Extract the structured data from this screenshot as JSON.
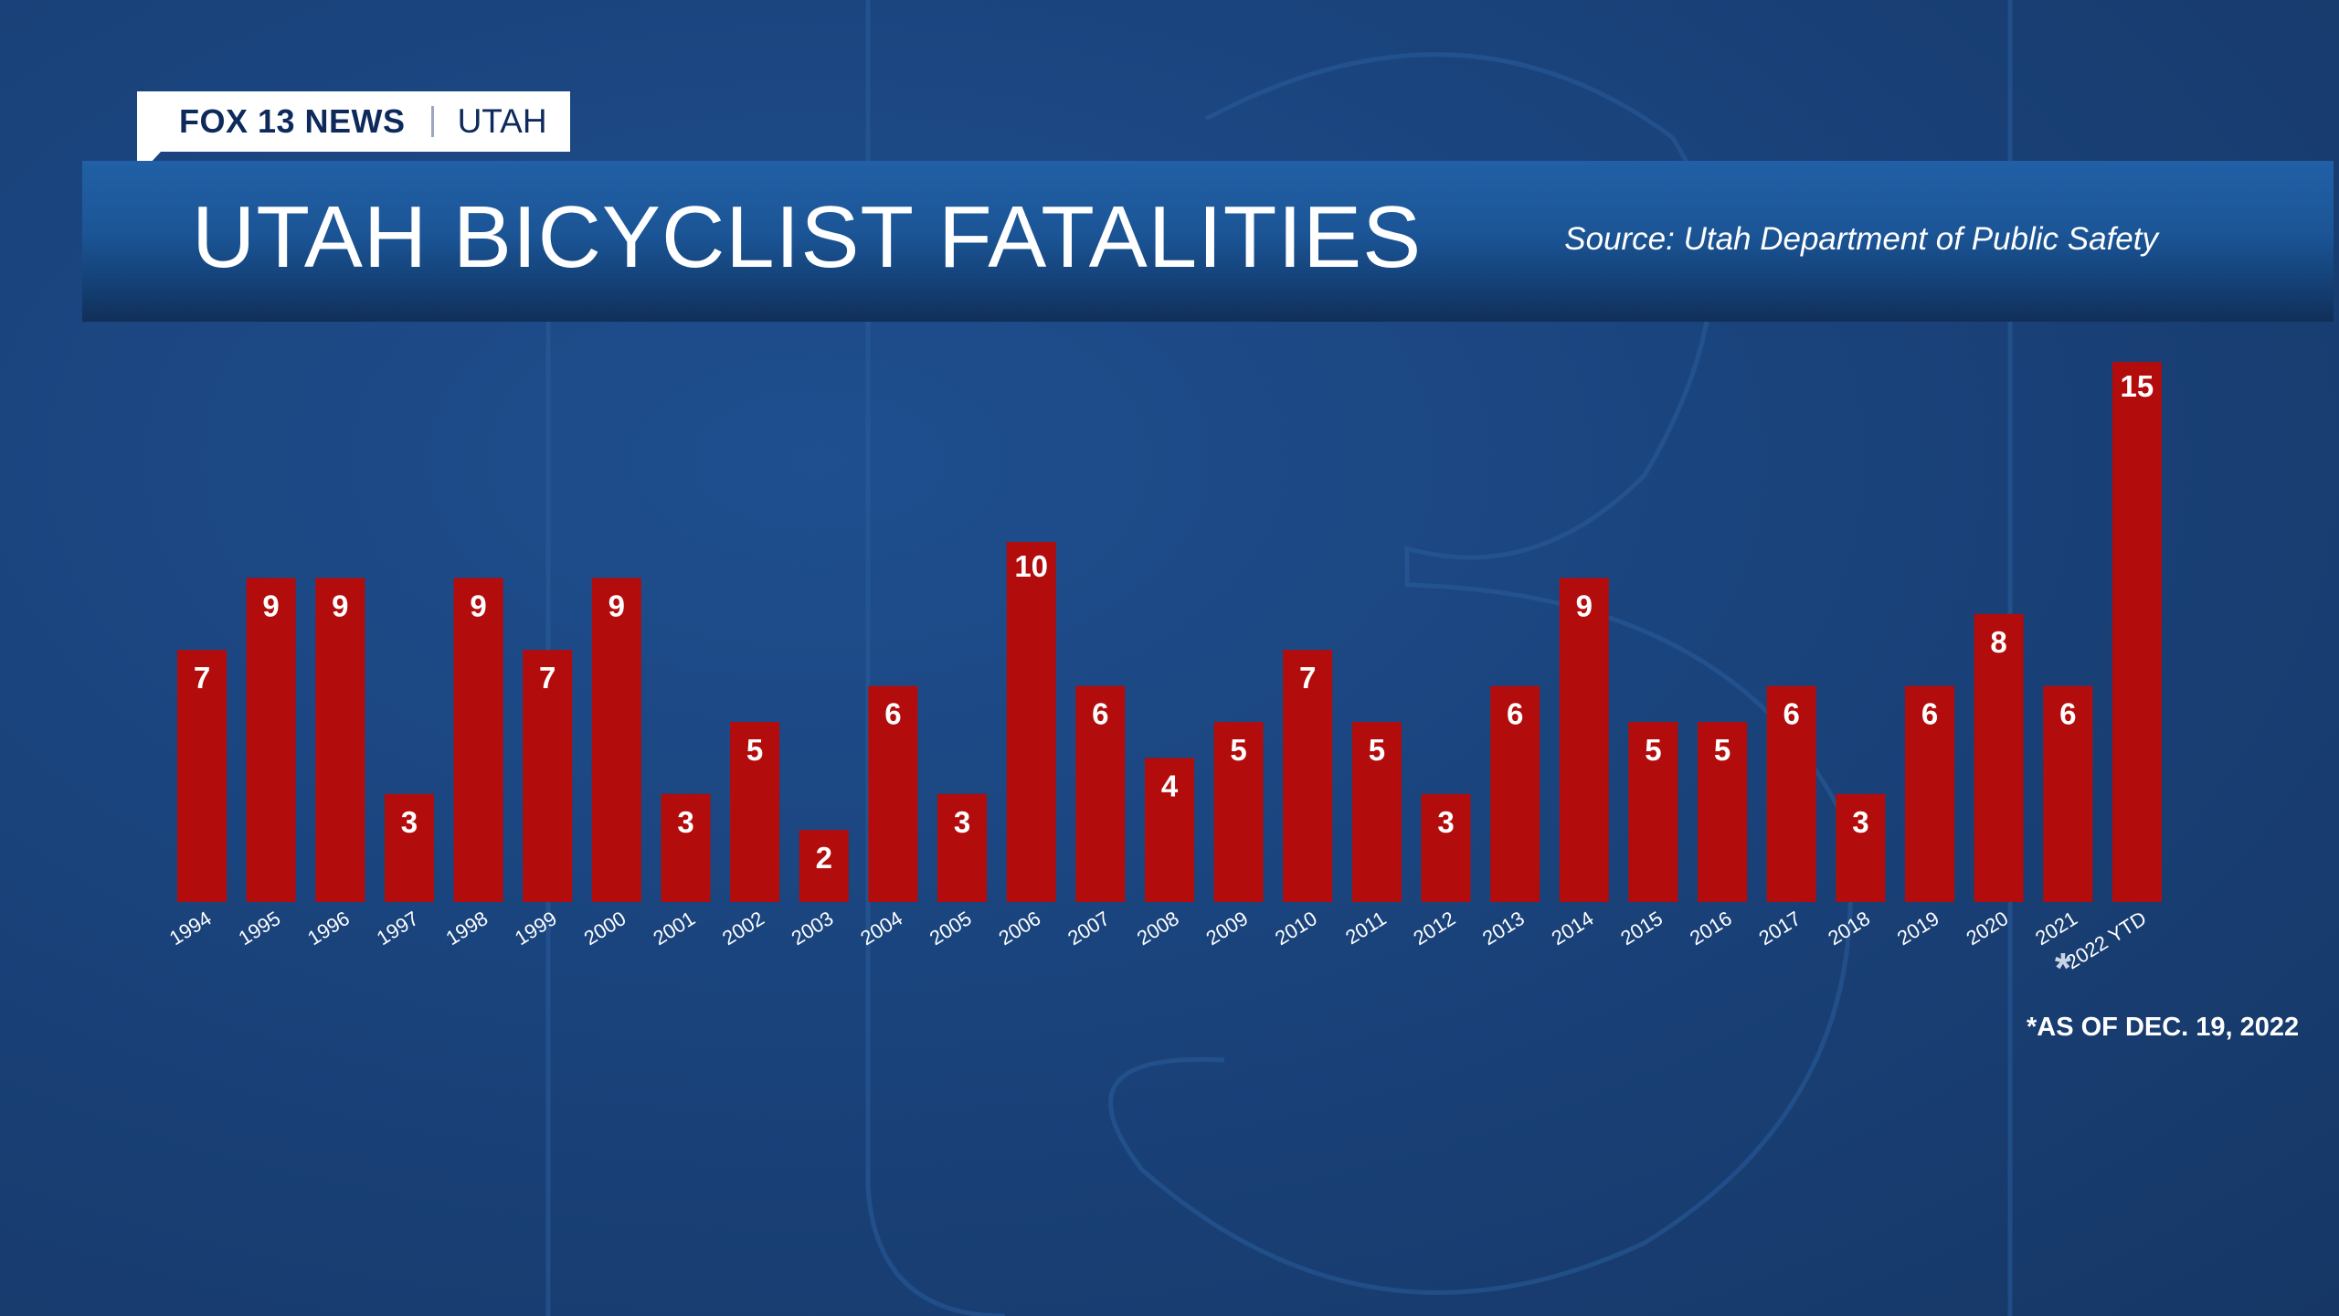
{
  "header": {
    "brand": "FOX 13 NEWS",
    "region": "UTAH"
  },
  "chart_data": {
    "type": "bar",
    "title": "UTAH BICYCLIST FATALITIES",
    "source": "Source: Utah Department of Public Safety",
    "categories": [
      "1994",
      "1995",
      "1996",
      "1997",
      "1998",
      "1999",
      "2000",
      "2001",
      "2002",
      "2003",
      "2004",
      "2005",
      "2006",
      "2007",
      "2008",
      "2009",
      "2010",
      "2011",
      "2012",
      "2013",
      "2014",
      "2015",
      "2016",
      "2017",
      "2018",
      "2019",
      "2020",
      "2021",
      "2022 YTD"
    ],
    "values": [
      7,
      9,
      9,
      3,
      9,
      7,
      9,
      3,
      5,
      2,
      6,
      3,
      10,
      6,
      4,
      5,
      7,
      5,
      3,
      6,
      9,
      5,
      5,
      6,
      3,
      6,
      8,
      6,
      15
    ],
    "footnote": "*AS OF DEC. 19, 2022",
    "footnote_marker": "*",
    "grid": false,
    "legend": "none",
    "colors": {
      "bar": "#b30c0c",
      "label": "#ffffff",
      "background": "#1a437c"
    }
  }
}
